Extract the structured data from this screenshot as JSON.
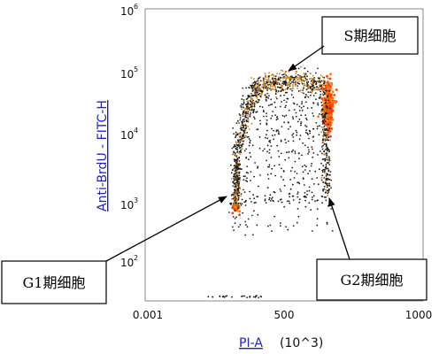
{
  "chart_data": {
    "type": "scatter",
    "xlabel_link": "PI-A",
    "xlabel_unit": "(10^3)",
    "ylabel": "Anti-BrdU - FITC-H",
    "x_ticks": [
      "0.001",
      "500",
      "1000"
    ],
    "y_ticks": [
      {
        "base": "10",
        "exp": "2"
      },
      {
        "base": "10",
        "exp": "3"
      },
      {
        "base": "10",
        "exp": "4"
      },
      {
        "base": "10",
        "exp": "5"
      },
      {
        "base": "10",
        "exp": "6"
      }
    ],
    "xlim": [
      0.001,
      1000
    ],
    "ylim_log10": [
      1.5,
      6
    ],
    "y_scale": "log",
    "grid": false,
    "colors": {
      "points_low": "#1a1a1a",
      "points_mid": "#c77a10",
      "points_high": "#ff7a00",
      "points_peak": "#ff3a10",
      "axis_label": "#1f1fc8"
    },
    "populations": [
      {
        "name": "G1期细胞",
        "pi_center": 325,
        "log_brdu_center": 3.05
      },
      {
        "name": "S期细胞",
        "pi_center": 500,
        "log_brdu_center": 4.9
      },
      {
        "name": "G2期细胞",
        "pi_center": 660,
        "log_brdu_center": 3.3
      }
    ],
    "annotations": [
      "S期细胞",
      "G1期细胞",
      "G2期细胞"
    ]
  }
}
